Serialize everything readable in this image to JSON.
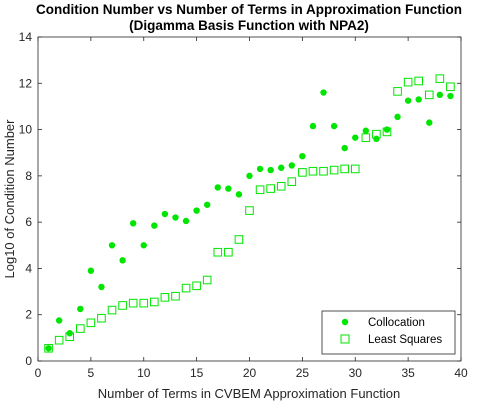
{
  "chart_data": {
    "type": "scatter",
    "title": "Condition Number vs Number of Terms in Approximation Function",
    "subtitle": "(Digamma Basis Function with NPA2)",
    "xlabel": "Number of Terms in CVBEM Approximation Function",
    "ylabel": "Log10 of Condition Number",
    "xlim": [
      0,
      40
    ],
    "ylim": [
      0,
      14
    ],
    "xticks": [
      0,
      5,
      10,
      15,
      20,
      25,
      30,
      35,
      40
    ],
    "yticks": [
      0,
      2,
      4,
      6,
      8,
      10,
      12,
      14
    ],
    "grid": false,
    "legend_position": "bottom-right",
    "color": "#00e600",
    "series": [
      {
        "name": "Collocation",
        "marker": "filled-circle",
        "x": [
          1,
          2,
          3,
          4,
          5,
          6,
          7,
          8,
          9,
          10,
          11,
          12,
          13,
          14,
          15,
          16,
          17,
          18,
          19,
          20,
          21,
          22,
          23,
          24,
          25,
          26,
          27,
          28,
          29,
          30,
          31,
          32,
          33,
          34,
          35,
          36,
          37,
          38,
          39
        ],
        "y": [
          0.55,
          1.75,
          1.2,
          2.25,
          3.9,
          3.2,
          5.0,
          4.35,
          5.95,
          5.0,
          5.85,
          6.35,
          6.2,
          6.05,
          6.5,
          6.75,
          7.5,
          7.45,
          7.2,
          8.0,
          8.3,
          8.25,
          8.35,
          8.45,
          8.85,
          10.15,
          11.6,
          10.15,
          9.2,
          9.65,
          9.95,
          9.6,
          10.0,
          10.55,
          11.25,
          11.3,
          10.3,
          11.5,
          11.45
        ]
      },
      {
        "name": "Least Squares",
        "marker": "open-square",
        "x": [
          1,
          2,
          3,
          4,
          5,
          6,
          7,
          8,
          9,
          10,
          11,
          12,
          13,
          14,
          15,
          16,
          17,
          18,
          19,
          20,
          21,
          22,
          23,
          24,
          25,
          26,
          27,
          28,
          29,
          30,
          31,
          32,
          33,
          34,
          35,
          36,
          37,
          38,
          39
        ],
        "y": [
          0.55,
          0.9,
          1.05,
          1.4,
          1.65,
          1.85,
          2.2,
          2.4,
          2.5,
          2.5,
          2.55,
          2.75,
          2.8,
          3.15,
          3.25,
          3.5,
          4.7,
          4.7,
          5.25,
          6.5,
          7.4,
          7.45,
          7.55,
          7.75,
          8.15,
          8.2,
          8.2,
          8.25,
          8.3,
          8.3,
          9.65,
          9.8,
          9.9,
          11.65,
          12.05,
          12.1,
          11.5,
          12.2,
          11.85
        ]
      }
    ]
  }
}
